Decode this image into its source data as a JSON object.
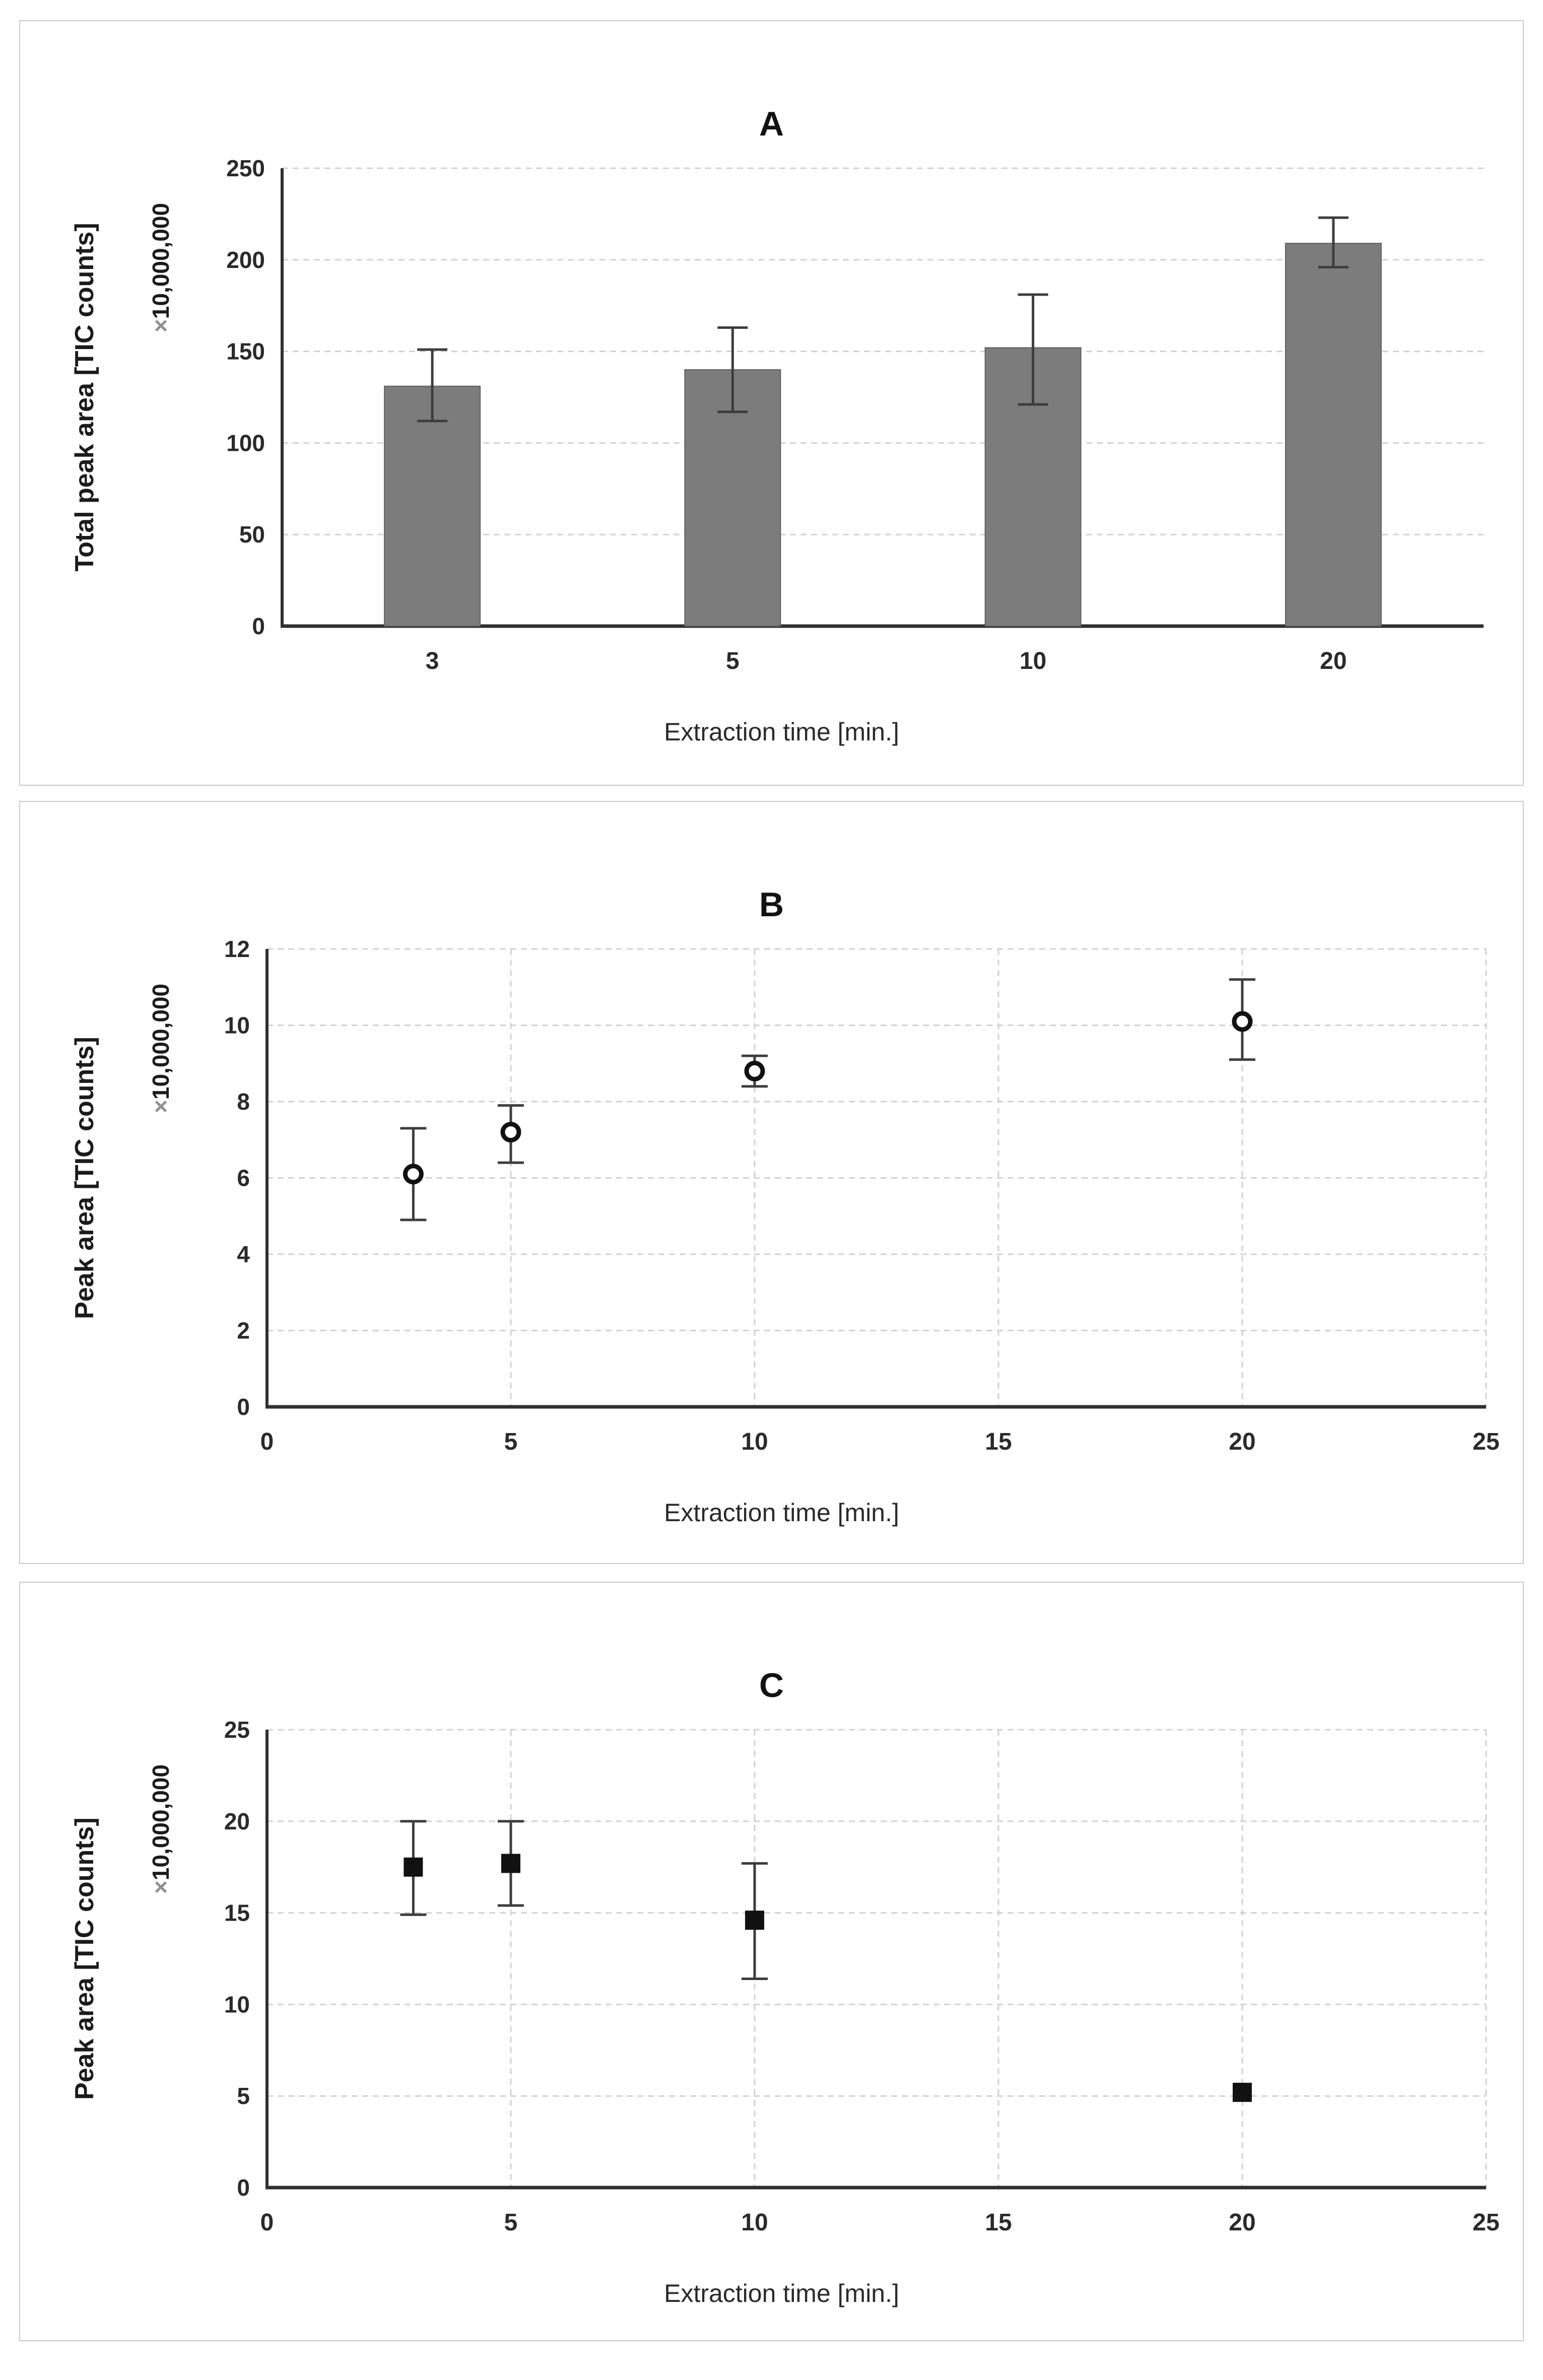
{
  "style": {
    "background": "#ffffff",
    "panel_border": "#c9c9c9",
    "text": "#2a2a2a",
    "grid": "#d2d2d2",
    "axis": "#2f2f2f",
    "error_bar": "#3d3d3d",
    "bar_fill": "#7c7c7c",
    "bar_stroke": "#606060",
    "marker": "#111111",
    "multiplier_sign": "#8f8f8f"
  },
  "chart_data": [
    {
      "type": "bar",
      "title": "A",
      "ylabel": "Total peak area [TIC counts]",
      "ylabel_multiplier": "×10,000,000",
      "xlabel": "Extraction time [min.]",
      "categories": [
        "3",
        "5",
        "10",
        "20"
      ],
      "values": [
        131,
        140,
        152,
        209
      ],
      "error_low": [
        112,
        117,
        121,
        196
      ],
      "error_high": [
        151,
        163,
        181,
        223
      ],
      "ylim": [
        0,
        250
      ],
      "yticks": [
        0,
        50,
        100,
        150,
        200,
        250
      ],
      "grid": "horizontal only",
      "legend": "none"
    },
    {
      "type": "scatter",
      "marker": "open-circle",
      "title": "B",
      "ylabel": "Peak area [TIC counts]",
      "ylabel_multiplier": "×10,000,000",
      "xlabel": "Extraction time [min.]",
      "x": [
        3,
        5,
        10,
        20
      ],
      "y": [
        6.1,
        7.2,
        8.8,
        10.1
      ],
      "error_low": [
        4.9,
        6.4,
        8.4,
        9.1
      ],
      "error_high": [
        7.3,
        7.9,
        9.2,
        11.2
      ],
      "xlim": [
        0,
        25
      ],
      "ylim": [
        0,
        12
      ],
      "xticks": [
        0,
        5,
        10,
        15,
        20,
        25
      ],
      "yticks": [
        0,
        2,
        4,
        6,
        8,
        10,
        12
      ],
      "grid": "horizontal and vertical",
      "legend": "none"
    },
    {
      "type": "scatter",
      "marker": "filled-square",
      "title": "C",
      "ylabel": "Peak area [TIC counts]",
      "ylabel_multiplier": "×10,000,000",
      "xlabel": "Extraction time [min.]",
      "x": [
        3,
        5,
        10,
        20
      ],
      "y": [
        17.5,
        17.7,
        14.6,
        5.2
      ],
      "error_low": [
        14.9,
        15.4,
        11.4,
        5.2
      ],
      "error_high": [
        20.0,
        20.0,
        17.7,
        5.2
      ],
      "xlim": [
        0,
        25
      ],
      "ylim": [
        0,
        25
      ],
      "xticks": [
        0,
        5,
        10,
        15,
        20,
        25
      ],
      "yticks": [
        0,
        5,
        10,
        15,
        20,
        25
      ],
      "grid": "horizontal and vertical",
      "legend": "none"
    }
  ]
}
